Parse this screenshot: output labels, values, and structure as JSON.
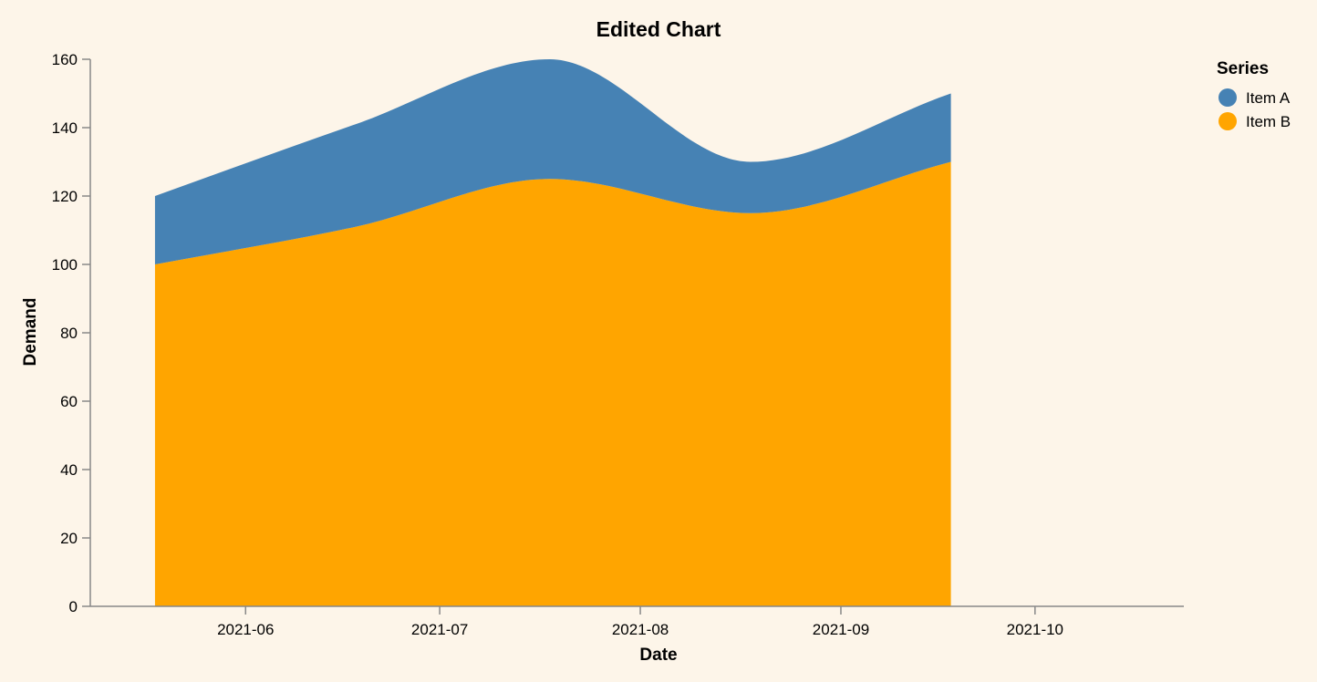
{
  "chart_data": {
    "type": "area",
    "stacked": true,
    "title": "Edited Chart",
    "xlabel": "Date",
    "ylabel": "Demand",
    "x": [
      "2021-05-18",
      "2021-06-18",
      "2021-07-18",
      "2021-08-18",
      "2021-09-18"
    ],
    "x_ticks": [
      "2021-06",
      "2021-07",
      "2021-08",
      "2021-09",
      "2021-10"
    ],
    "x_range": [
      "2021-05-08",
      "2021-10-24"
    ],
    "ylim": [
      0,
      160
    ],
    "y_ticks": [
      0,
      20,
      40,
      60,
      80,
      100,
      120,
      140,
      160
    ],
    "grid": false,
    "legend": {
      "title": "Series",
      "position": "top-right"
    },
    "series": [
      {
        "name": "Item A",
        "color": "#4682b4",
        "values": [
          20,
          30,
          35,
          15,
          20
        ]
      },
      {
        "name": "Item B",
        "color": "#ffa500",
        "values": [
          100,
          111,
          125,
          115,
          130
        ]
      }
    ]
  }
}
